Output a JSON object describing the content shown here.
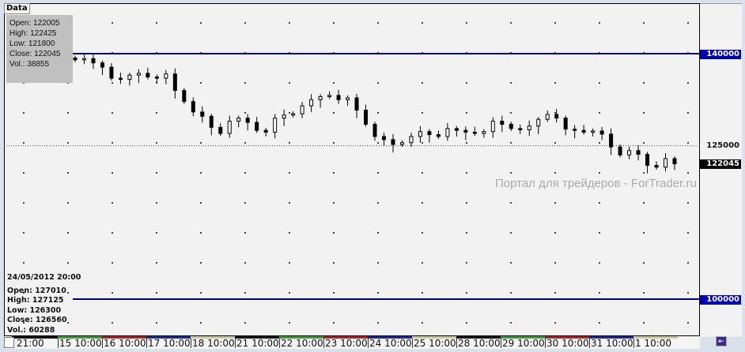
{
  "tab_label": "Data",
  "hover_info": {
    "open": "Open: 122005",
    "high": "High: 122425",
    "low": "Low: 121800",
    "close": "Close: 122045",
    "vol": "Vol.: 38855"
  },
  "bar_info": {
    "date": "24/05/2012 20:00",
    "open": "Open: 127010",
    "high": "High: 127125",
    "low": "Low: 126300",
    "close": "Close: 126560",
    "vol": "Vol.: 60288"
  },
  "watermark": "Портал для трейдеров - ForTrader.ru",
  "nav_icon": "scroll-to-end-icon",
  "colors": {
    "level_line": "#00007f",
    "level_label_bg": "#0000b0",
    "current_label_bg": "#000000",
    "candle": "#000000",
    "segment_colors": [
      "#3c9a3c",
      "#a02828",
      "#1a2a8a",
      "#cfc7a0",
      "#111111"
    ]
  },
  "chart_data": {
    "type": "candlestick",
    "x_labels": [
      "21:00",
      "15 10:00",
      "16 10:00",
      "17 10:00",
      "18 10:00",
      "21 10:00",
      "22 10:00",
      "23 10:00",
      "24 10:00",
      "25 10:00",
      "28 10:00",
      "29 10:00",
      "30 10:00",
      "31 10:00",
      "1 10:00"
    ],
    "y_labels": [
      "140000",
      "125000",
      "100000"
    ],
    "ylim": [
      92000,
      145000
    ],
    "horizontal_levels": [
      140000,
      100000
    ],
    "dotted_level": 125000,
    "current_price": "122045",
    "closes": [
      139000,
      139200,
      138500,
      137800,
      136000,
      135800,
      136500,
      136800,
      136200,
      136000,
      136700,
      134000,
      132200,
      130500,
      129800,
      128000,
      127000,
      129000,
      129500,
      128800,
      127500,
      127200,
      129500,
      130000,
      130200,
      131500,
      132500,
      133000,
      133200,
      132500,
      132800,
      130800,
      128500,
      126500,
      126000,
      125200,
      125500,
      126500,
      127300,
      126800,
      126500,
      127800,
      127500,
      127200,
      127000,
      127300,
      129000,
      128500,
      127800,
      127600,
      128200,
      129300,
      130100,
      129500,
      127700,
      127500,
      127200,
      127400,
      126900,
      124800,
      123500,
      124200,
      123600,
      121800,
      121500,
      122900,
      122045
    ]
  }
}
